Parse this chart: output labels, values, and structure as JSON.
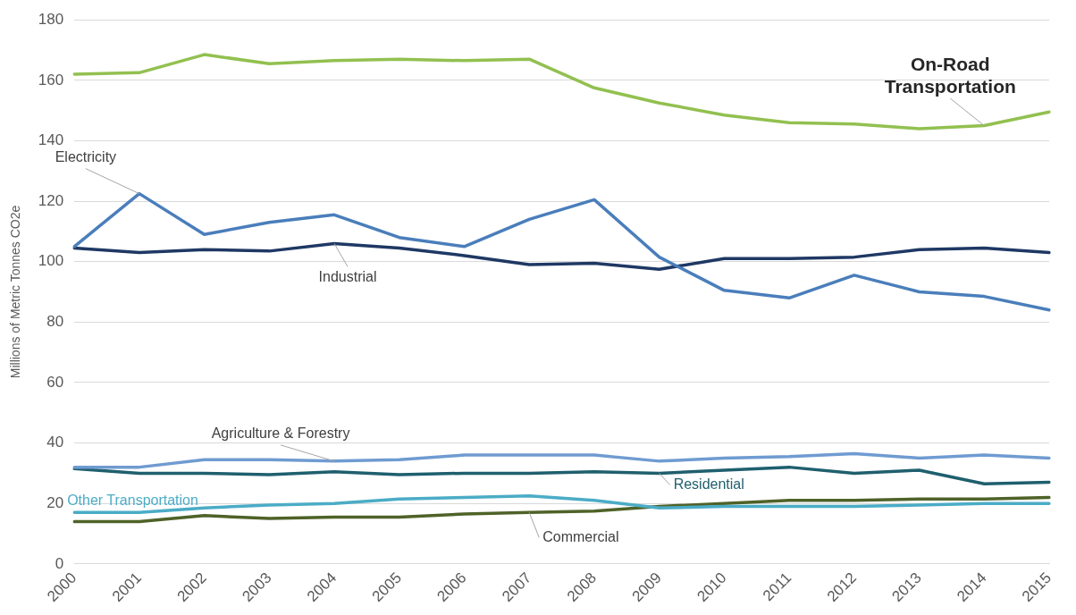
{
  "chart_data": {
    "type": "line",
    "ylabel": "Millions of Metric Tonnes CO2e",
    "categories": [
      "2000",
      "2001",
      "2002",
      "2003",
      "2004",
      "2005",
      "2006",
      "2007",
      "2008",
      "2009",
      "2010",
      "2011",
      "2012",
      "2013",
      "2014",
      "2015"
    ],
    "ylim": [
      0,
      180
    ],
    "yticks": [
      0,
      20,
      40,
      60,
      80,
      100,
      120,
      140,
      160,
      180
    ],
    "grid": "y",
    "legend": false,
    "marker": "none",
    "line_style": "solid",
    "series": [
      {
        "name": "On-Road Transportation",
        "color": "#92c050",
        "values": [
          162,
          162.5,
          168.5,
          165.5,
          166.5,
          167,
          166.5,
          167,
          157.5,
          152.5,
          148.5,
          146,
          145.5,
          144,
          145,
          149.5
        ]
      },
      {
        "name": "Electricity",
        "color": "#4a7ebb",
        "values": [
          105,
          122.5,
          109,
          113,
          115.5,
          108,
          105,
          114,
          120.5,
          101.5,
          90.5,
          88,
          95.5,
          90,
          88.5,
          84
        ]
      },
      {
        "name": "Industrial",
        "color": "#1f3864",
        "values": [
          104.5,
          103,
          104,
          103.5,
          106,
          104.5,
          102,
          99,
          99.5,
          97.5,
          101,
          101,
          101.5,
          104,
          104.5,
          103
        ]
      },
      {
        "name": "Agriculture & Forestry",
        "color": "#6f9bd1",
        "values": [
          32,
          32,
          34.5,
          34.5,
          34,
          34.5,
          36,
          36,
          36,
          34,
          35,
          35.5,
          36.5,
          35,
          36,
          35
        ]
      },
      {
        "name": "Residential",
        "color": "#1f5f6e",
        "values": [
          31.5,
          30,
          30,
          29.5,
          30.5,
          29.5,
          30,
          30,
          30.5,
          30,
          31,
          32,
          30,
          31,
          26.5,
          27
        ]
      },
      {
        "name": "Other Transportation",
        "color": "#4bacc6",
        "values": [
          17,
          17,
          18.5,
          19.5,
          20,
          21.5,
          22,
          22.5,
          21,
          18.5,
          19,
          19,
          19,
          19.5,
          20,
          20
        ]
      },
      {
        "name": "Commercial",
        "color": "#4f6228",
        "values": [
          14,
          14,
          16,
          15,
          15.5,
          15.5,
          16.5,
          17,
          17.5,
          19,
          20,
          21,
          21,
          21.5,
          21.5,
          22
        ]
      }
    ]
  }
}
